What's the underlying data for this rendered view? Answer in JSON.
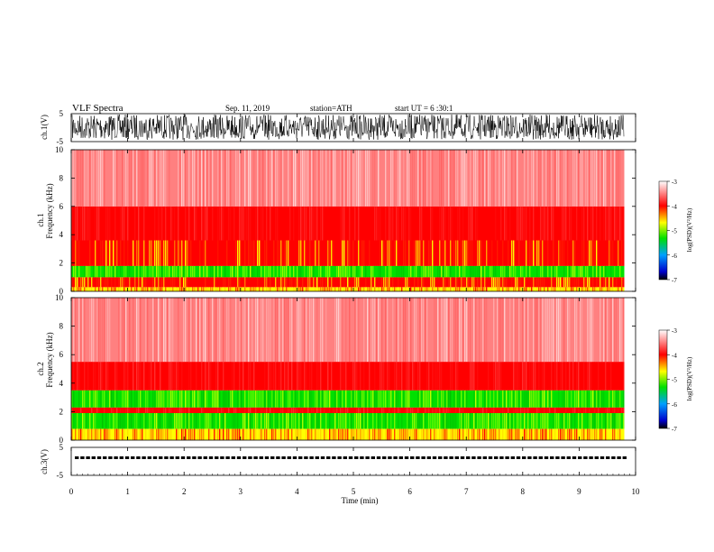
{
  "header": {
    "title": "VLF  Spectra",
    "date": "Sep. 11, 2019",
    "station": "station=ATH",
    "start_ut": "start  UT  =   6  :30:1"
  },
  "colors": {
    "spectrogram_scale": [
      "#000000",
      "#0000ff",
      "#00a0ff",
      "#00e000",
      "#ffff00",
      "#ff0000",
      "#ffffff"
    ],
    "waveform": "#000000",
    "background": "#ffffff"
  },
  "chart_data": [
    {
      "type": "line",
      "name": "ch1-waveform",
      "ylabel": "ch.1(V)",
      "ylim": [
        -5,
        5
      ],
      "yticks": [
        "5",
        "-5"
      ],
      "xlim": [
        0,
        10
      ],
      "data_extent_min": 9.8,
      "note": "dense noise waveform filling most of range"
    },
    {
      "type": "heatmap",
      "name": "ch1-spectrogram",
      "ylabel": "ch.1\nFrequency  (kHz)",
      "ylabel_line1": "ch.1",
      "ylabel_line2": "Frequency  (kHz)",
      "ylim": [
        0,
        10
      ],
      "yticks": [
        "0",
        "2",
        "4",
        "6",
        "8",
        "10"
      ],
      "xlim": [
        0,
        10
      ],
      "bands": [
        {
          "from_khz": 0.0,
          "to_khz": 0.3,
          "level": "yellow-red"
        },
        {
          "from_khz": 0.3,
          "to_khz": 1.0,
          "level": "red-yellow"
        },
        {
          "from_khz": 1.0,
          "to_khz": 1.8,
          "level": "green"
        },
        {
          "from_khz": 1.8,
          "to_khz": 3.6,
          "level": "red-yellow"
        },
        {
          "from_khz": 3.6,
          "to_khz": 6.0,
          "level": "red"
        },
        {
          "from_khz": 6.0,
          "to_khz": 10.0,
          "level": "light-red"
        }
      ],
      "colorbar": {
        "label": "log(PSD)(V²/Hz)",
        "ticks": [
          "-3",
          "-4",
          "-5",
          "-6",
          "-7"
        ],
        "range": [
          -7,
          -3
        ]
      }
    },
    {
      "type": "heatmap",
      "name": "ch2-spectrogram",
      "ylabel_line1": "ch.2",
      "ylabel_line2": "Frequency  (kHz)",
      "ylim": [
        0,
        10
      ],
      "yticks": [
        "0",
        "2",
        "4",
        "6",
        "8",
        "10"
      ],
      "xlim": [
        0,
        10
      ],
      "bands": [
        {
          "from_khz": 0.0,
          "to_khz": 0.8,
          "level": "yellow-red"
        },
        {
          "from_khz": 0.8,
          "to_khz": 1.9,
          "level": "green"
        },
        {
          "from_khz": 1.9,
          "to_khz": 2.3,
          "level": "red"
        },
        {
          "from_khz": 2.3,
          "to_khz": 3.5,
          "level": "green"
        },
        {
          "from_khz": 3.5,
          "to_khz": 5.5,
          "level": "red"
        },
        {
          "from_khz": 5.5,
          "to_khz": 10.0,
          "level": "light-red"
        }
      ],
      "colorbar": {
        "label": "log(PSD)(V²/Hz)",
        "ticks": [
          "-3",
          "-4",
          "-5",
          "-6",
          "-7"
        ],
        "range": [
          -7,
          -3
        ]
      }
    },
    {
      "type": "line",
      "name": "ch3-waveform",
      "ylabel": "ch.3(V)",
      "ylim": [
        -5,
        5
      ],
      "yticks": [
        "5",
        "-5"
      ],
      "xlim": [
        0,
        10
      ],
      "level_v": 0,
      "xlabel": "Time  (min)",
      "xticks": [
        "0",
        "1",
        "2",
        "3",
        "4",
        "5",
        "6",
        "7",
        "8",
        "9",
        "10"
      ]
    }
  ]
}
